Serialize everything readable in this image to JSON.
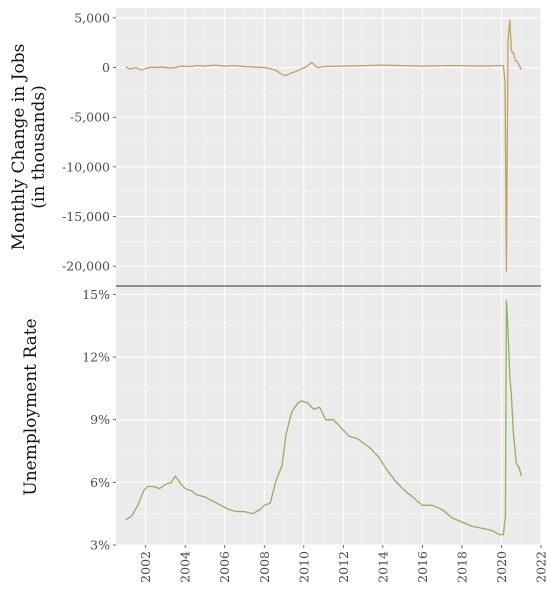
{
  "colors": {
    "jobs_line": "#c4a15f",
    "unemployment_line": "#8db35a",
    "panel_background": "#ebebeb",
    "divider": "#555555"
  },
  "chart_data": [
    {
      "type": "line",
      "ylabel_line1": "Monthly Change in Jobs",
      "ylabel_line2": "(in thousands)",
      "xlim": [
        2000.5,
        2022
      ],
      "ylim": [
        -22000,
        6000
      ],
      "yticks": [
        5000,
        0,
        -5000,
        -10000,
        -15000,
        -20000
      ],
      "ytick_labels": [
        "5,000",
        "0",
        "-5,000",
        "-10,000",
        "-15,000",
        "-20,000"
      ],
      "grid": true,
      "series": [
        {
          "x": [
            2001.0,
            2001.2,
            2001.5,
            2001.8,
            2002.0,
            2002.3,
            2002.6,
            2002.9,
            2003.2,
            2003.5,
            2003.8,
            2004.2,
            2004.6,
            2005.0,
            2005.5,
            2006.0,
            2006.5,
            2007.0,
            2007.5,
            2008.0,
            2008.3,
            2008.6,
            2008.9,
            2009.1,
            2009.3,
            2009.6,
            2009.9,
            2010.1,
            2010.25,
            2010.4,
            2010.7,
            2011.0,
            2012.0,
            2013.0,
            2014.0,
            2015.0,
            2016.0,
            2017.0,
            2018.0,
            2019.0,
            2019.8,
            2020.1,
            2020.18,
            2020.25,
            2020.33,
            2020.42,
            2020.5,
            2020.6,
            2020.7,
            2020.8,
            2020.9,
            2021.0
          ],
          "y": [
            100,
            -150,
            0,
            -250,
            -100,
            50,
            0,
            50,
            -50,
            0,
            150,
            100,
            200,
            150,
            250,
            150,
            200,
            100,
            50,
            0,
            -100,
            -300,
            -700,
            -800,
            -600,
            -400,
            -100,
            50,
            300,
            500,
            0,
            100,
            150,
            200,
            250,
            200,
            150,
            200,
            200,
            150,
            200,
            200,
            -1500,
            -20500,
            2700,
            4800,
            1700,
            1500,
            700,
            600,
            200,
            -200
          ]
        }
      ]
    },
    {
      "type": "line",
      "ylabel": "Unemployment Rate",
      "xlabel": "",
      "xlim": [
        2000.5,
        2022
      ],
      "ylim": [
        3,
        15.4
      ],
      "yticks": [
        3,
        6,
        9,
        12,
        15
      ],
      "ytick_labels": [
        "3%",
        "6%",
        "9%",
        "12%",
        "15%"
      ],
      "xticks": [
        2002,
        2004,
        2006,
        2008,
        2010,
        2012,
        2014,
        2016,
        2018,
        2020,
        2022
      ],
      "xtick_labels": [
        "2002",
        "2004",
        "2006",
        "2008",
        "2010",
        "2012",
        "2014",
        "2016",
        "2018",
        "2020",
        "2022"
      ],
      "grid": true,
      "series": [
        {
          "x": [
            2001.0,
            2001.3,
            2001.6,
            2001.9,
            2002.1,
            2002.4,
            2002.7,
            2003.0,
            2003.3,
            2003.5,
            2003.8,
            2004.0,
            2004.3,
            2004.6,
            2005.0,
            2005.4,
            2005.8,
            2006.2,
            2006.6,
            2007.0,
            2007.4,
            2007.8,
            2008.0,
            2008.3,
            2008.6,
            2008.9,
            2009.1,
            2009.4,
            2009.7,
            2009.9,
            2010.2,
            2010.5,
            2010.8,
            2011.1,
            2011.5,
            2011.9,
            2012.3,
            2012.7,
            2013.0,
            2013.4,
            2013.8,
            2014.2,
            2014.6,
            2015.0,
            2015.5,
            2016.0,
            2016.5,
            2017.0,
            2017.5,
            2018.0,
            2018.5,
            2019.0,
            2019.5,
            2019.9,
            2020.1,
            2020.2,
            2020.25,
            2020.33,
            2020.42,
            2020.5,
            2020.6,
            2020.75,
            2020.9,
            2021.0
          ],
          "y": [
            4.2,
            4.4,
            4.9,
            5.6,
            5.8,
            5.8,
            5.7,
            5.9,
            6.0,
            6.3,
            5.9,
            5.7,
            5.6,
            5.4,
            5.3,
            5.1,
            4.9,
            4.7,
            4.6,
            4.6,
            4.5,
            4.7,
            4.9,
            5.0,
            6.1,
            6.8,
            8.3,
            9.4,
            9.8,
            9.9,
            9.8,
            9.5,
            9.6,
            9.0,
            9.0,
            8.6,
            8.2,
            8.1,
            7.9,
            7.6,
            7.2,
            6.6,
            6.1,
            5.7,
            5.3,
            4.9,
            4.9,
            4.7,
            4.3,
            4.1,
            3.9,
            3.8,
            3.7,
            3.5,
            3.5,
            4.4,
            14.7,
            13.3,
            11.1,
            10.2,
            8.4,
            6.9,
            6.7,
            6.3
          ]
        }
      ]
    }
  ]
}
